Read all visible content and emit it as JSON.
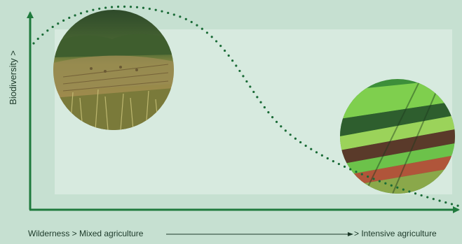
{
  "diagram": {
    "y_axis_label": "Biodiversity >",
    "x_axis_label_left": "Wilderness > Mixed agriculture",
    "x_axis_label_right": "> Intensive agriculture",
    "photos": [
      {
        "subject": "mixed-agriculture-meadow-photo"
      },
      {
        "subject": "intensive-agriculture-striped-fields-photo"
      }
    ],
    "colors": {
      "background": "#c6e0d1",
      "panel": "#d7eadf",
      "axis": "#1f7a3d",
      "curve": "#1a6b37"
    }
  }
}
